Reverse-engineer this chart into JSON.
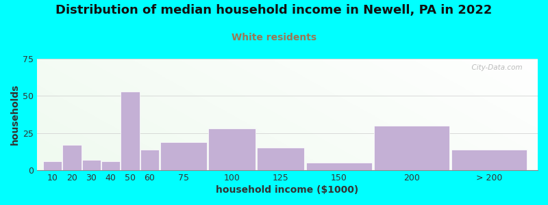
{
  "title": "Distribution of median household income in Newell, PA in 2022",
  "subtitle": "White residents",
  "xlabel": "household income ($1000)",
  "ylabel": "households",
  "background_outer": "#00FFFF",
  "bar_color": "#C4B0D5",
  "subtitle_color": "#997755",
  "title_color": "#111111",
  "categories": [
    "10",
    "20",
    "30",
    "40",
    "50",
    "60",
    "75",
    "100",
    "125",
    "150",
    "200",
    "> 200"
  ],
  "values": [
    6,
    17,
    7,
    6,
    53,
    14,
    19,
    28,
    15,
    5,
    30,
    14
  ],
  "bar_lefts": [
    0,
    1,
    2,
    3,
    4,
    5,
    6,
    8.5,
    11,
    13.5,
    17,
    21
  ],
  "bar_widths": [
    1,
    1,
    1,
    1,
    1,
    1,
    2.5,
    2.5,
    2.5,
    3.5,
    4,
    4
  ],
  "ylim": [
    0,
    75
  ],
  "yticks": [
    0,
    25,
    50,
    75
  ],
  "xlim_left": -0.3,
  "xlim_right": 25.5,
  "title_fontsize": 13,
  "subtitle_fontsize": 10,
  "axis_label_fontsize": 10,
  "tick_fontsize": 9,
  "watermark": "  City-Data.com"
}
